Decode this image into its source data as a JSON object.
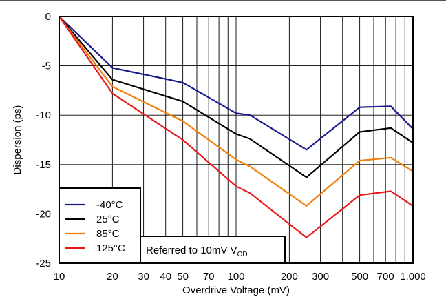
{
  "chart_data": {
    "type": "line",
    "xlabel": "Overdrive Voltage (mV)",
    "ylabel": "Dispersion (ps)",
    "x_scale": "log",
    "xlim": [
      10,
      1000
    ],
    "ylim": [
      -25,
      0
    ],
    "x_ticks": [
      10,
      20,
      30,
      40,
      50,
      70,
      100,
      200,
      300,
      500,
      700,
      1000
    ],
    "x_tick_labels": [
      "10",
      "20",
      "30",
      "40",
      "50",
      "70",
      "100",
      "200",
      "300",
      "500",
      "700",
      "1,000"
    ],
    "y_ticks": [
      0,
      -5,
      -10,
      -15,
      -20,
      -25
    ],
    "y_tick_labels": [
      "0",
      "-5",
      "-10",
      "-15",
      "-20",
      "-25"
    ],
    "grid": true,
    "legend_position": "bottom-left",
    "annotation": {
      "text": "Referred to 10mV V",
      "subscript": "OD"
    },
    "x": [
      10,
      20,
      50,
      100,
      120,
      250,
      500,
      750,
      1000
    ],
    "series": [
      {
        "name": "-40°C",
        "color": "#1a1a8c",
        "values": [
          0,
          -5.2,
          -6.7,
          -9.8,
          -10.0,
          -13.5,
          -9.2,
          -9.1,
          -11.4
        ]
      },
      {
        "name": "25°C",
        "color": "#000000",
        "values": [
          0,
          -6.4,
          -8.6,
          -11.9,
          -12.4,
          -16.3,
          -11.7,
          -11.3,
          -12.8
        ]
      },
      {
        "name": "85°C",
        "color": "#f07f0a",
        "values": [
          0,
          -7.1,
          -10.6,
          -14.5,
          -15.2,
          -19.2,
          -14.6,
          -14.3,
          -15.7
        ]
      },
      {
        "name": "125°C",
        "color": "#e8191b",
        "values": [
          0,
          -7.8,
          -12.5,
          -17.2,
          -17.9,
          -22.4,
          -18.1,
          -17.7,
          -19.2
        ]
      }
    ]
  }
}
